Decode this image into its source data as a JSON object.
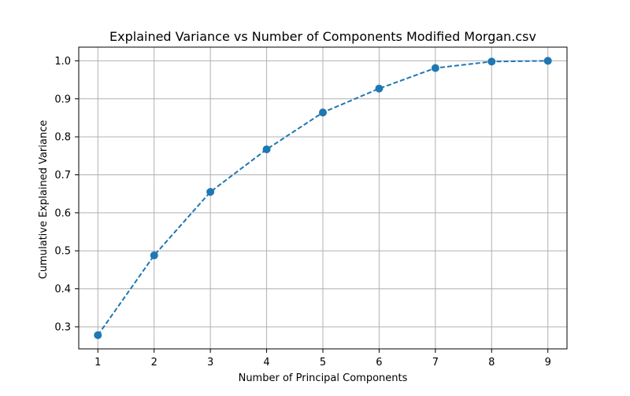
{
  "chart_data": {
    "type": "line",
    "title": "Explained Variance vs Number of Components Modified Morgan.csv",
    "xlabel": "Number of Principal Components",
    "ylabel": "Cumulative Explained Variance",
    "x": [
      1,
      2,
      3,
      4,
      5,
      6,
      7,
      8,
      9
    ],
    "series": [
      {
        "values": [
          0.278,
          0.488,
          0.655,
          0.767,
          0.864,
          0.927,
          0.981,
          0.998,
          1.0
        ],
        "color": "#1f77b4",
        "line_style": "dashed",
        "marker": "circle"
      }
    ],
    "xlim": [
      0.66,
      9.34
    ],
    "ylim": [
      0.242,
      1.036
    ],
    "xticks": [
      "1",
      "2",
      "3",
      "4",
      "5",
      "6",
      "7",
      "8",
      "9"
    ],
    "yticks": [
      "0.3",
      "0.4",
      "0.5",
      "0.6",
      "0.7",
      "0.8",
      "0.9",
      "1.0"
    ],
    "grid": true,
    "legend": false
  }
}
